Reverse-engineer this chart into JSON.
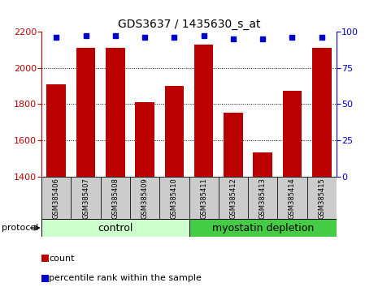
{
  "title": "GDS3637 / 1435630_s_at",
  "samples": [
    "GSM385406",
    "GSM385407",
    "GSM385408",
    "GSM385409",
    "GSM385410",
    "GSM385411",
    "GSM385412",
    "GSM385413",
    "GSM385414",
    "GSM385415"
  ],
  "counts": [
    1910,
    2110,
    2110,
    1810,
    1900,
    2130,
    1750,
    1535,
    1875,
    2110
  ],
  "percentile_ranks": [
    96,
    97,
    97,
    96,
    96,
    97,
    95,
    95,
    96,
    96
  ],
  "ylim_left": [
    1400,
    2200
  ],
  "ylim_right": [
    0,
    100
  ],
  "yticks_left": [
    1400,
    1600,
    1800,
    2000,
    2200
  ],
  "yticks_right": [
    0,
    25,
    50,
    75,
    100
  ],
  "bar_color": "#bb0000",
  "dot_color": "#0000cc",
  "control_label": "control",
  "myostatin_label": "myostatin depletion",
  "protocol_label": "protocol",
  "legend_count": "count",
  "legend_pct": "percentile rank within the sample",
  "control_bg_light": "#ccffcc",
  "control_bg_dark": "#44cc44",
  "tick_label_bg": "#cccccc",
  "grid_yticks": [
    1600,
    1800,
    2000
  ],
  "n_control": 5
}
